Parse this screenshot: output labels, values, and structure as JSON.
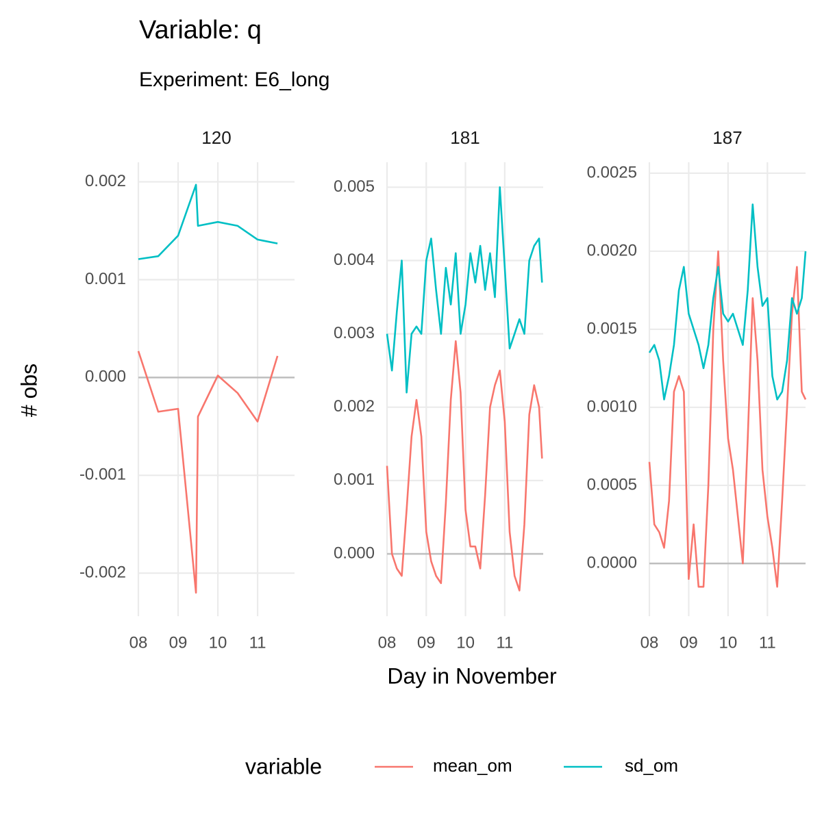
{
  "title": "Variable: q",
  "subtitle": "Experiment: E6_long",
  "x_label": "Day in November",
  "y_label": "# obs",
  "legend_title": "variable",
  "grid": true,
  "hline": 0,
  "chart_data": [
    {
      "type": "line",
      "facet": "120",
      "x": [
        8,
        8.5,
        9,
        9.45,
        9.5,
        10,
        10.5,
        11,
        11.5
      ],
      "series": [
        {
          "name": "mean_om",
          "color": "#f8766d",
          "values": [
            0.00027,
            -0.00035,
            -0.00032,
            -0.0022,
            -0.0004,
            2e-05,
            -0.00016,
            -0.00045,
            0.00022
          ]
        },
        {
          "name": "sd_om",
          "color": "#00bfc4",
          "values": [
            0.00121,
            0.00124,
            0.00145,
            0.00197,
            0.00155,
            0.00159,
            0.00155,
            0.00141,
            0.00137
          ]
        }
      ],
      "xlim": [
        8,
        11.93
      ],
      "ylim": [
        -0.00244,
        0.0022
      ],
      "xticks": [
        {
          "value": 8,
          "label": "08"
        },
        {
          "value": 9,
          "label": "09"
        },
        10,
        11
      ],
      "yticks": [
        -0.002,
        -0.001,
        {
          "value": 0,
          "label": "0.000"
        },
        0.001,
        0.002
      ]
    },
    {
      "type": "line",
      "facet": "181",
      "x": [
        8,
        8.125,
        8.25,
        8.375,
        8.5,
        8.625,
        8.75,
        8.875,
        9,
        9.125,
        9.25,
        9.375,
        9.5,
        9.625,
        9.75,
        9.875,
        10,
        10.125,
        10.25,
        10.375,
        10.5,
        10.625,
        10.75,
        10.875,
        11,
        11.125,
        11.25,
        11.375,
        11.5,
        11.625,
        11.75,
        11.875,
        11.95
      ],
      "series": [
        {
          "name": "mean_om",
          "color": "#f8766d",
          "values": [
            0.0012,
            0.0,
            -0.0002,
            -0.0003,
            0.0006,
            0.0016,
            0.0021,
            0.0016,
            0.0003,
            -0.0001,
            -0.0003,
            -0.0004,
            0.0007,
            0.0021,
            0.0029,
            0.0022,
            0.0006,
            0.0001,
            0.0001,
            -0.0002,
            0.0008,
            0.002,
            0.0023,
            0.0025,
            0.0018,
            0.0003,
            -0.0003,
            -0.0005,
            0.0004,
            0.0019,
            0.0023,
            0.002,
            0.0013
          ]
        },
        {
          "name": "sd_om",
          "color": "#00bfc4",
          "values": [
            0.003,
            0.0025,
            0.0033,
            0.004,
            0.0022,
            0.003,
            0.0031,
            0.003,
            0.004,
            0.0043,
            0.0036,
            0.003,
            0.0039,
            0.0034,
            0.0041,
            0.003,
            0.0034,
            0.0041,
            0.0037,
            0.0042,
            0.0036,
            0.0041,
            0.0035,
            0.005,
            0.0039,
            0.0028,
            0.003,
            0.0032,
            0.003,
            0.004,
            0.0042,
            0.0043,
            0.0037
          ]
        }
      ],
      "xlim": [
        8,
        11.98
      ],
      "ylim": [
        -0.00085,
        0.00534
      ],
      "xticks": [
        {
          "value": 8,
          "label": "08"
        },
        {
          "value": 9,
          "label": "09"
        },
        10,
        11
      ],
      "yticks": [
        {
          "value": 0,
          "label": "0.000"
        },
        0.001,
        0.002,
        0.003,
        0.004,
        0.005
      ]
    },
    {
      "type": "line",
      "facet": "187",
      "x": [
        8,
        8.125,
        8.25,
        8.375,
        8.5,
        8.625,
        8.75,
        8.875,
        9,
        9.125,
        9.25,
        9.375,
        9.5,
        9.625,
        9.75,
        9.875,
        10,
        10.125,
        10.25,
        10.375,
        10.5,
        10.625,
        10.75,
        10.875,
        11,
        11.125,
        11.25,
        11.375,
        11.5,
        11.625,
        11.75,
        11.875,
        11.97
      ],
      "series": [
        {
          "name": "mean_om",
          "color": "#f8766d",
          "values": [
            0.00065,
            0.00025,
            0.0002,
            0.0001,
            0.0004,
            0.0011,
            0.0012,
            0.0011,
            -0.0001,
            0.00025,
            -0.00015,
            -0.00015,
            0.0005,
            0.0015,
            0.002,
            0.0013,
            0.0008,
            0.0006,
            0.0003,
            0.0,
            0.0008,
            0.0017,
            0.0013,
            0.0006,
            0.0003,
            0.0001,
            -0.00015,
            0.0004,
            0.001,
            0.0016,
            0.0019,
            0.0011,
            0.00105
          ]
        },
        {
          "name": "sd_om",
          "color": "#00bfc4",
          "values": [
            0.00135,
            0.0014,
            0.0013,
            0.00105,
            0.0012,
            0.0014,
            0.00175,
            0.0019,
            0.0016,
            0.0015,
            0.0014,
            0.00125,
            0.0014,
            0.0017,
            0.0019,
            0.0016,
            0.00155,
            0.0016,
            0.0015,
            0.0014,
            0.00175,
            0.0023,
            0.0019,
            0.00165,
            0.0017,
            0.0012,
            0.00105,
            0.0011,
            0.0013,
            0.0017,
            0.0016,
            0.0017,
            0.002
          ]
        }
      ],
      "xlim": [
        8,
        11.97
      ],
      "ylim": [
        -0.000338,
        0.00257
      ],
      "xticks": [
        {
          "value": 8,
          "label": "08"
        },
        {
          "value": 9,
          "label": "09"
        },
        10,
        11
      ],
      "yticks": [
        {
          "value": 0,
          "label": "0.0000"
        },
        0.0005,
        {
          "value": 0.001,
          "label": "0.0010"
        },
        0.0015,
        {
          "value": 0.002,
          "label": "0.0020"
        },
        0.0025
      ]
    }
  ]
}
